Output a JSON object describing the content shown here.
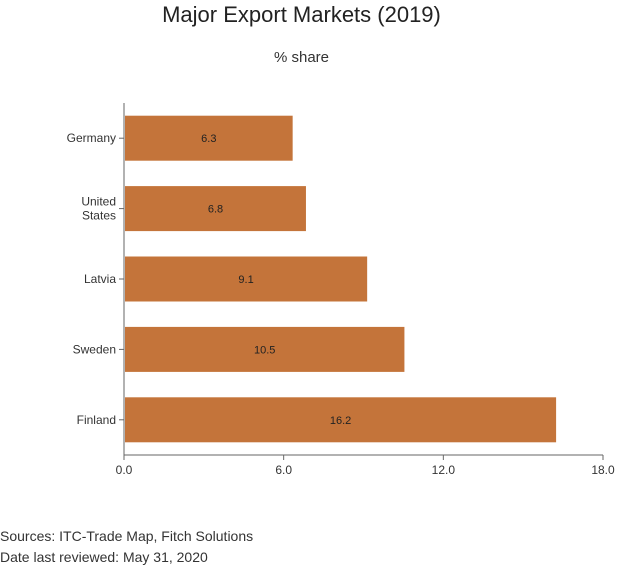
{
  "chart_data": {
    "type": "bar",
    "orientation": "horizontal",
    "title": "Major Export Markets (2019)",
    "subtitle": "% share",
    "categories": [
      "Germany",
      "United States",
      "Latvia",
      "Sweden",
      "Finland"
    ],
    "category_lines": [
      [
        "Germany"
      ],
      [
        "United",
        "States"
      ],
      [
        "Latvia"
      ],
      [
        "Sweden"
      ],
      [
        "Finland"
      ]
    ],
    "values": [
      6.3,
      6.8,
      9.1,
      10.5,
      16.2
    ],
    "value_labels": [
      "6.3",
      "6.8",
      "9.1",
      "10.5",
      "16.2"
    ],
    "xlim": [
      0,
      18
    ],
    "xticks": [
      0,
      6,
      12,
      18
    ],
    "xtick_labels": [
      "0.0",
      "6.0",
      "12.0",
      "18.0"
    ],
    "xlabel": "",
    "ylabel": "",
    "grid": false,
    "bar_color": "#c4743a"
  },
  "footer": {
    "sources": "Sources: ITC-Trade Map, Fitch Solutions",
    "date": "Date last reviewed: May 31, 2020"
  }
}
